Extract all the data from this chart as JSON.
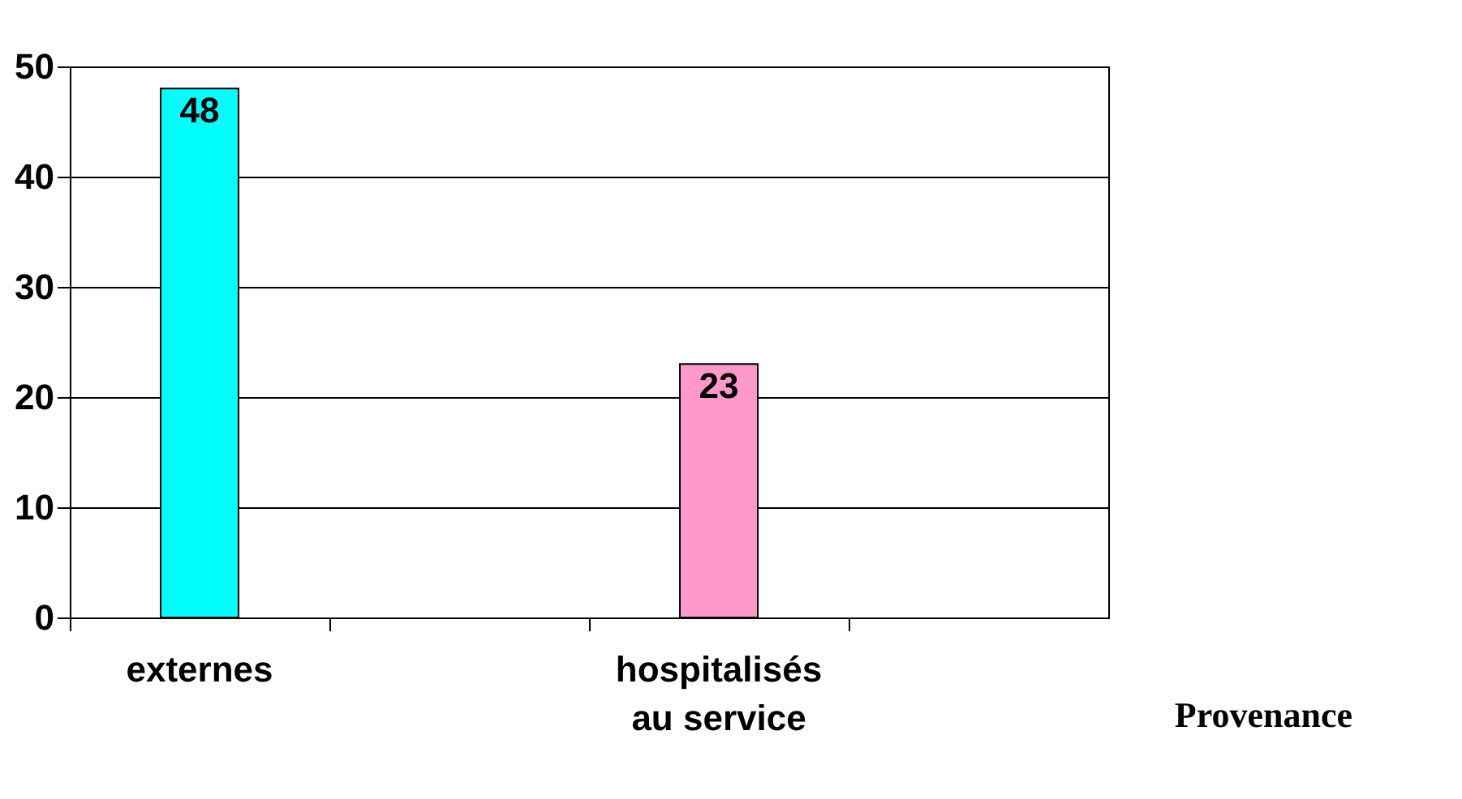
{
  "chart_data": {
    "type": "bar",
    "xlabel": "Provenance",
    "categories": [
      "externes",
      null,
      "hospitalisés au service",
      null
    ],
    "values": [
      48,
      null,
      23,
      null
    ],
    "colors": [
      "#00ffff",
      "#ff99cc",
      "#ff99cc",
      "#ff99cc"
    ],
    "ylim": [
      0,
      50
    ],
    "yticks": [
      0,
      10,
      20,
      30,
      40,
      50
    ],
    "grid": "y",
    "data_labels": true
  }
}
